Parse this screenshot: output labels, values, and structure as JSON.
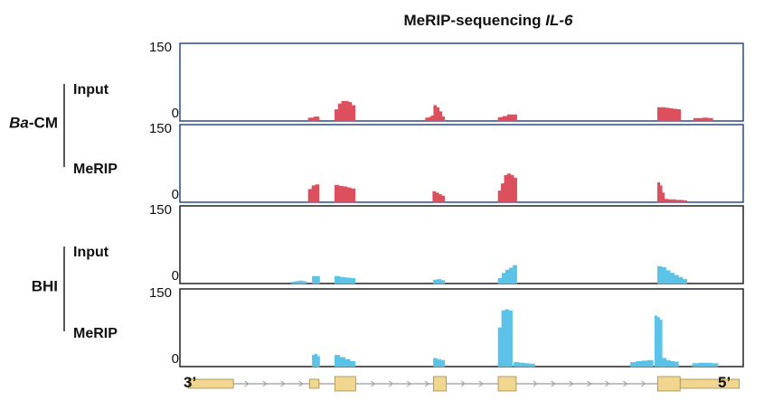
{
  "chart_data": {
    "type": "area",
    "title_prefix": "MeRIP-sequencing ",
    "title_gene": "IL-6",
    "ylim": [
      0,
      150
    ],
    "y_max_label": "150",
    "y_min_label": "0",
    "x_range": [
      0,
      100
    ],
    "groups": [
      {
        "label_italic": "Ba",
        "label_rest": "-CM",
        "color": "#dc4f5c",
        "frame": "#2a4a8a",
        "tracks": [
          "Input",
          "MeRIP"
        ]
      },
      {
        "label_italic": "",
        "label_rest": "BHI",
        "color": "#5cc3e8",
        "frame": "#222222",
        "tracks": [
          "Input",
          "MeRIP"
        ]
      }
    ],
    "tracks": [
      {
        "group": 0,
        "label": "Input",
        "peaks": [
          {
            "x0": 22.8,
            "x1": 24.7,
            "vals": [
              6,
              8
            ]
          },
          {
            "x0": 27.5,
            "x1": 31.1,
            "vals": [
              22,
              33,
              38,
              38,
              36,
              30
            ]
          },
          {
            "x0": 43.6,
            "x1": 47.0,
            "vals": [
              6,
              7,
              10,
              30,
              26,
              18,
              8
            ]
          },
          {
            "x0": 56.5,
            "x1": 59.8,
            "vals": [
              7,
              9,
              12,
              12
            ]
          },
          {
            "x0": 84.8,
            "x1": 88.9,
            "vals": [
              26,
              26,
              25,
              24,
              23,
              22
            ]
          },
          {
            "x0": 91.2,
            "x1": 94.6,
            "vals": [
              5,
              5,
              6,
              5
            ]
          }
        ]
      },
      {
        "group": 0,
        "label": "MeRIP",
        "peaks": [
          {
            "x0": 22.8,
            "x1": 24.7,
            "vals": [
              25,
              32,
              34
            ]
          },
          {
            "x0": 27.5,
            "x1": 31.1,
            "vals": [
              33,
              31,
              30,
              28,
              26
            ]
          },
          {
            "x0": 44.9,
            "x1": 47.0,
            "vals": [
              21,
              18,
              15,
              12
            ]
          },
          {
            "x0": 56.5,
            "x1": 59.8,
            "vals": [
              22,
              36,
              52,
              55,
              52,
              47
            ]
          },
          {
            "x0": 84.8,
            "x1": 86.0,
            "vals": [
              38,
              32,
              18
            ]
          },
          {
            "x0": 86.0,
            "x1": 90.0,
            "vals": [
              6,
              5,
              5,
              4,
              4,
              3
            ]
          }
        ]
      },
      {
        "group": 1,
        "label": "Input",
        "peaks": [
          {
            "x0": 19.8,
            "x1": 22.4,
            "vals": [
              3,
              4,
              5,
              4
            ]
          },
          {
            "x0": 23.5,
            "x1": 24.8,
            "vals": [
              14,
              14
            ]
          },
          {
            "x0": 27.5,
            "x1": 31.1,
            "vals": [
              14,
              12,
              11,
              10
            ]
          },
          {
            "x0": 45.0,
            "x1": 47.0,
            "vals": [
              7,
              8,
              6
            ]
          },
          {
            "x0": 56.5,
            "x1": 59.8,
            "vals": [
              10,
              20,
              26,
              30,
              35
            ]
          },
          {
            "x0": 84.8,
            "x1": 90.0,
            "vals": [
              33,
              31,
              25,
              20,
              16,
              12,
              8
            ]
          }
        ]
      },
      {
        "group": 1,
        "label": "MeRIP",
        "peaks": [
          {
            "x0": 23.5,
            "x1": 24.8,
            "vals": [
              22,
              24,
              20
            ]
          },
          {
            "x0": 27.5,
            "x1": 31.1,
            "vals": [
              22,
              18,
              14,
              10
            ]
          },
          {
            "x0": 45.0,
            "x1": 47.0,
            "vals": [
              16,
              14,
              12
            ]
          },
          {
            "x0": 56.5,
            "x1": 59.0,
            "vals": [
              75,
              108,
              110,
              108
            ]
          },
          {
            "x0": 59.3,
            "x1": 63.0,
            "vals": [
              8,
              7,
              6,
              5
            ]
          },
          {
            "x0": 80.0,
            "x1": 84.0,
            "vals": [
              8,
              10,
              11,
              12
            ]
          },
          {
            "x0": 84.3,
            "x1": 85.6,
            "vals": [
              98,
              95,
              90
            ]
          },
          {
            "x0": 85.6,
            "x1": 88.5,
            "vals": [
              16,
              12,
              10,
              9
            ]
          },
          {
            "x0": 91.0,
            "x1": 95.5,
            "vals": [
              6,
              7,
              7,
              6
            ]
          }
        ]
      }
    ],
    "gene_model": {
      "left_label": "3’",
      "right_label": "5’",
      "utr_blocks": [
        [
          1.5,
          9.5
        ],
        [
          23.0,
          24.7
        ],
        [
          88.8,
          99.3
        ]
      ],
      "exons": [
        [
          27.5,
          31.2
        ],
        [
          45.0,
          47.3
        ],
        [
          56.5,
          59.7
        ],
        [
          84.8,
          88.8
        ]
      ]
    }
  }
}
